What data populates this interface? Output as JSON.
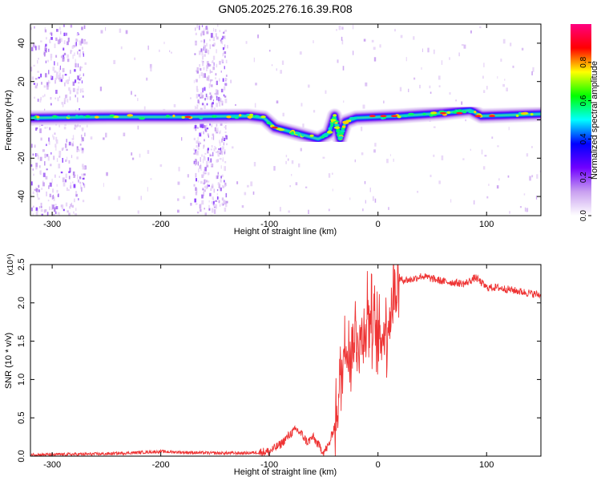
{
  "title": "GN05.2025.276.16.39.R08",
  "chart_data": [
    {
      "type": "heatmap",
      "name": "spectrogram",
      "xlabel": "Height of straight line (km)",
      "ylabel": "Frequency (Hz)",
      "xlim": [
        -320,
        150
      ],
      "ylim": [
        -50,
        50
      ],
      "xticks": [
        -300,
        -200,
        -100,
        0,
        100
      ],
      "xtick_labels": [
        "-300",
        "-200",
        "-100",
        "0",
        "100"
      ],
      "yticks": [
        -40,
        -20,
        0,
        20,
        40
      ],
      "ytick_labels": [
        "-40",
        "-20",
        "0",
        "20",
        "40"
      ],
      "colorbar": {
        "label": "Normalized spectral amplitude",
        "range": [
          0,
          1
        ],
        "ticks": [
          0,
          0.2,
          0.4,
          0.6,
          0.8
        ],
        "tick_labels": [
          "0.0",
          "0.2",
          "0.4",
          "0.6",
          "0.8"
        ],
        "colors": [
          "#ffffff",
          "#c9a0f0",
          "#7000ff",
          "#0000ff",
          "#00ffff",
          "#00ff00",
          "#ffff00",
          "#ff0000",
          "#ff0080"
        ]
      },
      "signal_track": [
        {
          "x": -320,
          "f": 1.0
        },
        {
          "x": -250,
          "f": 1.5
        },
        {
          "x": -180,
          "f": 1.5
        },
        {
          "x": -120,
          "f": 2.0
        },
        {
          "x": -105,
          "f": 1.0
        },
        {
          "x": -95,
          "f": -4.0
        },
        {
          "x": -75,
          "f": -7.0
        },
        {
          "x": -55,
          "f": -10.0
        },
        {
          "x": -45,
          "f": -7.0
        },
        {
          "x": -40,
          "f": 2.0
        },
        {
          "x": -35,
          "f": -10.0
        },
        {
          "x": -30,
          "f": -1.0
        },
        {
          "x": -20,
          "f": 1.0
        },
        {
          "x": 20,
          "f": 2.0
        },
        {
          "x": 60,
          "f": 3.5
        },
        {
          "x": 85,
          "f": 5.0
        },
        {
          "x": 95,
          "f": 2.0
        },
        {
          "x": 150,
          "f": 3.0
        }
      ],
      "noise_bands": [
        [
          -320,
          -270
        ],
        [
          -170,
          -140
        ]
      ]
    },
    {
      "type": "line",
      "name": "snr",
      "xlabel": "Height of straight line (km)",
      "ylabel": "SNR (10 * v/v)",
      "y_scale_label": "(x10⁴)",
      "xlim": [
        -320,
        150
      ],
      "ylim": [
        0,
        2.5
      ],
      "xticks": [
        -300,
        -200,
        -100,
        0,
        100
      ],
      "xtick_labels": [
        "-300",
        "-200",
        "-100",
        "0",
        "100"
      ],
      "yticks": [
        0,
        0.5,
        1.0,
        1.5,
        2.0,
        2.5
      ],
      "ytick_labels": [
        "0.0",
        "0.5",
        "1.0",
        "1.5",
        "2.0",
        "2.5"
      ],
      "color": "#ee3333",
      "series": [
        {
          "name": "SNR",
          "x": [
            -320,
            -300,
            -250,
            -200,
            -180,
            -150,
            -120,
            -100,
            -90,
            -80,
            -75,
            -70,
            -65,
            -60,
            -55,
            -50,
            -45,
            -40,
            -35,
            -30,
            -25,
            -20,
            -15,
            -10,
            -5,
            0,
            5,
            10,
            15,
            20,
            30,
            40,
            60,
            80,
            90,
            100,
            110,
            130,
            150
          ],
          "values": [
            0.02,
            0.02,
            0.03,
            0.06,
            0.05,
            0.04,
            0.04,
            0.06,
            0.15,
            0.3,
            0.35,
            0.28,
            0.18,
            0.25,
            0.15,
            0.05,
            0.15,
            0.4,
            0.9,
            1.5,
            1.4,
            1.6,
            1.5,
            1.9,
            1.7,
            1.5,
            1.6,
            1.8,
            2.15,
            2.3,
            2.3,
            2.35,
            2.28,
            2.25,
            2.33,
            2.2,
            2.2,
            2.15,
            2.1
          ]
        }
      ]
    }
  ]
}
